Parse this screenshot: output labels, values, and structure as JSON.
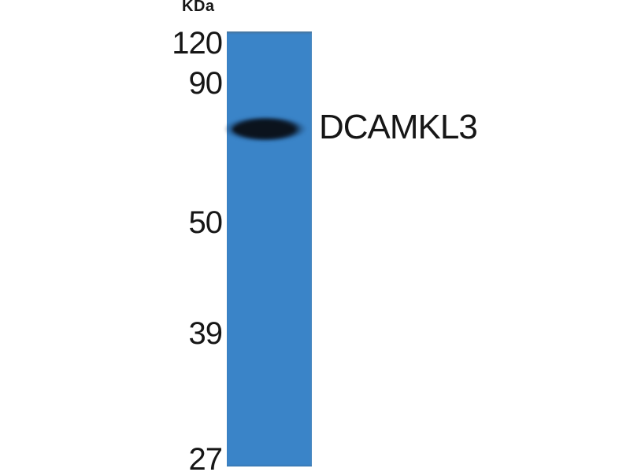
{
  "blot": {
    "type": "western-blot",
    "unit_label": "KDa",
    "band_label": "DCAMKL3",
    "markers": [
      "120",
      "90",
      "50",
      "39",
      "27"
    ],
    "colors": {
      "background": "#ffffff",
      "lane": "#3a84c8",
      "band": "#0b131d",
      "label_text": "#161616"
    }
  }
}
